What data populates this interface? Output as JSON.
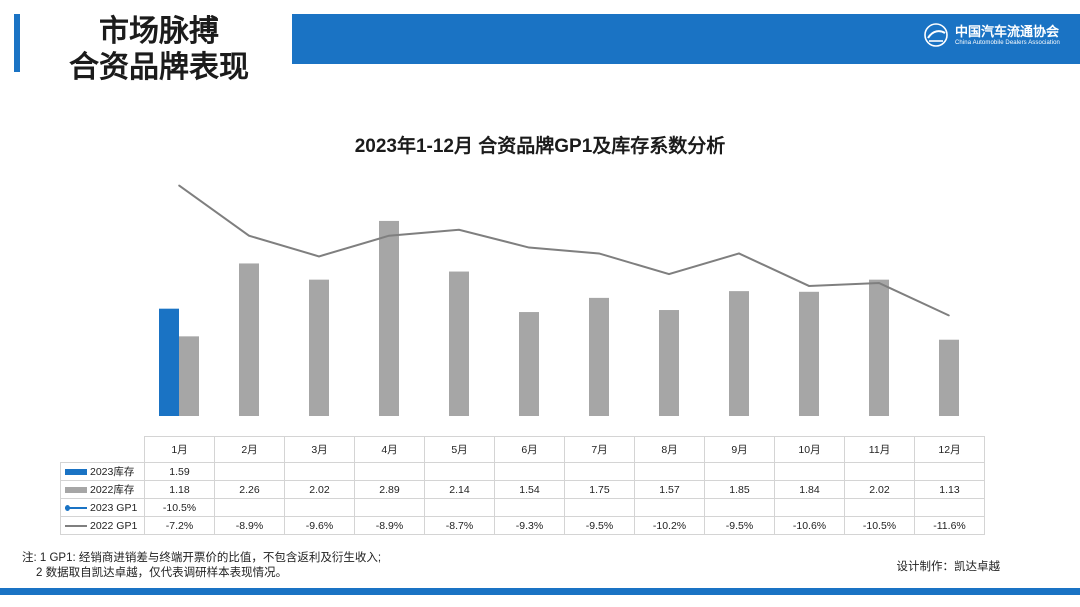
{
  "header": {
    "title_line1": "市场脉搏",
    "title_line2": "合资品牌表现",
    "logo_cn": "中国汽车流通协会",
    "logo_en": "China Automobile Dealers Association"
  },
  "colors": {
    "accent": "#1a73c4",
    "bar_2023": "#1a73c4",
    "bar_2022": "#a6a6a6",
    "line_2022": "#7f7f7f"
  },
  "chart_data": {
    "type": "bar",
    "title": "2023年1-12月 合资品牌GP1及库存系数分析",
    "categories": [
      "1月",
      "2月",
      "3月",
      "4月",
      "5月",
      "6月",
      "7月",
      "8月",
      "9月",
      "10月",
      "11月",
      "12月"
    ],
    "series": [
      {
        "name": "2023库存",
        "type": "bar",
        "values": [
          1.59,
          null,
          null,
          null,
          null,
          null,
          null,
          null,
          null,
          null,
          null,
          null
        ],
        "display": [
          "1.59",
          "",
          "",
          "",
          "",
          "",
          "",
          "",
          "",
          "",
          "",
          ""
        ]
      },
      {
        "name": "2022库存",
        "type": "bar",
        "values": [
          1.18,
          2.26,
          2.02,
          2.89,
          2.14,
          1.54,
          1.75,
          1.57,
          1.85,
          1.84,
          2.02,
          1.13
        ],
        "display": [
          "1.18",
          "2.26",
          "2.02",
          "2.89",
          "2.14",
          "1.54",
          "1.75",
          "1.57",
          "1.85",
          "1.84",
          "2.02",
          "1.13"
        ]
      },
      {
        "name": "2023 GP1",
        "type": "line",
        "values": [
          -10.5,
          null,
          null,
          null,
          null,
          null,
          null,
          null,
          null,
          null,
          null,
          null
        ],
        "display": [
          "-10.5%",
          "",
          "",
          "",
          "",
          "",
          "",
          "",
          "",
          "",
          "",
          ""
        ]
      },
      {
        "name": "2022 GP1",
        "type": "line",
        "values": [
          -7.2,
          -8.9,
          -9.6,
          -8.9,
          -8.7,
          -9.3,
          -9.5,
          -10.2,
          -9.5,
          -10.6,
          -10.5,
          -11.6
        ],
        "display": [
          "-7.2%",
          "-8.9%",
          "-9.6%",
          "-8.9%",
          "-8.7%",
          "-9.3%",
          "-9.5%",
          "-10.2%",
          "-9.5%",
          "-10.6%",
          "-10.5%",
          "-11.6%"
        ]
      }
    ],
    "bar_ylim": [
      0,
      3.2
    ],
    "line_ylim": [
      -15.0,
      -6.0
    ],
    "grid": false,
    "legend": "table-bottom"
  },
  "footnote": {
    "line1": "注: 1 GP1: 经销商进销差与终端开票价的比值，不包含返利及衍生收入;",
    "line2": "2 数据取自凯达卓越，仅代表调研样本表现情况。"
  },
  "credit": "设计制作：凯达卓越"
}
